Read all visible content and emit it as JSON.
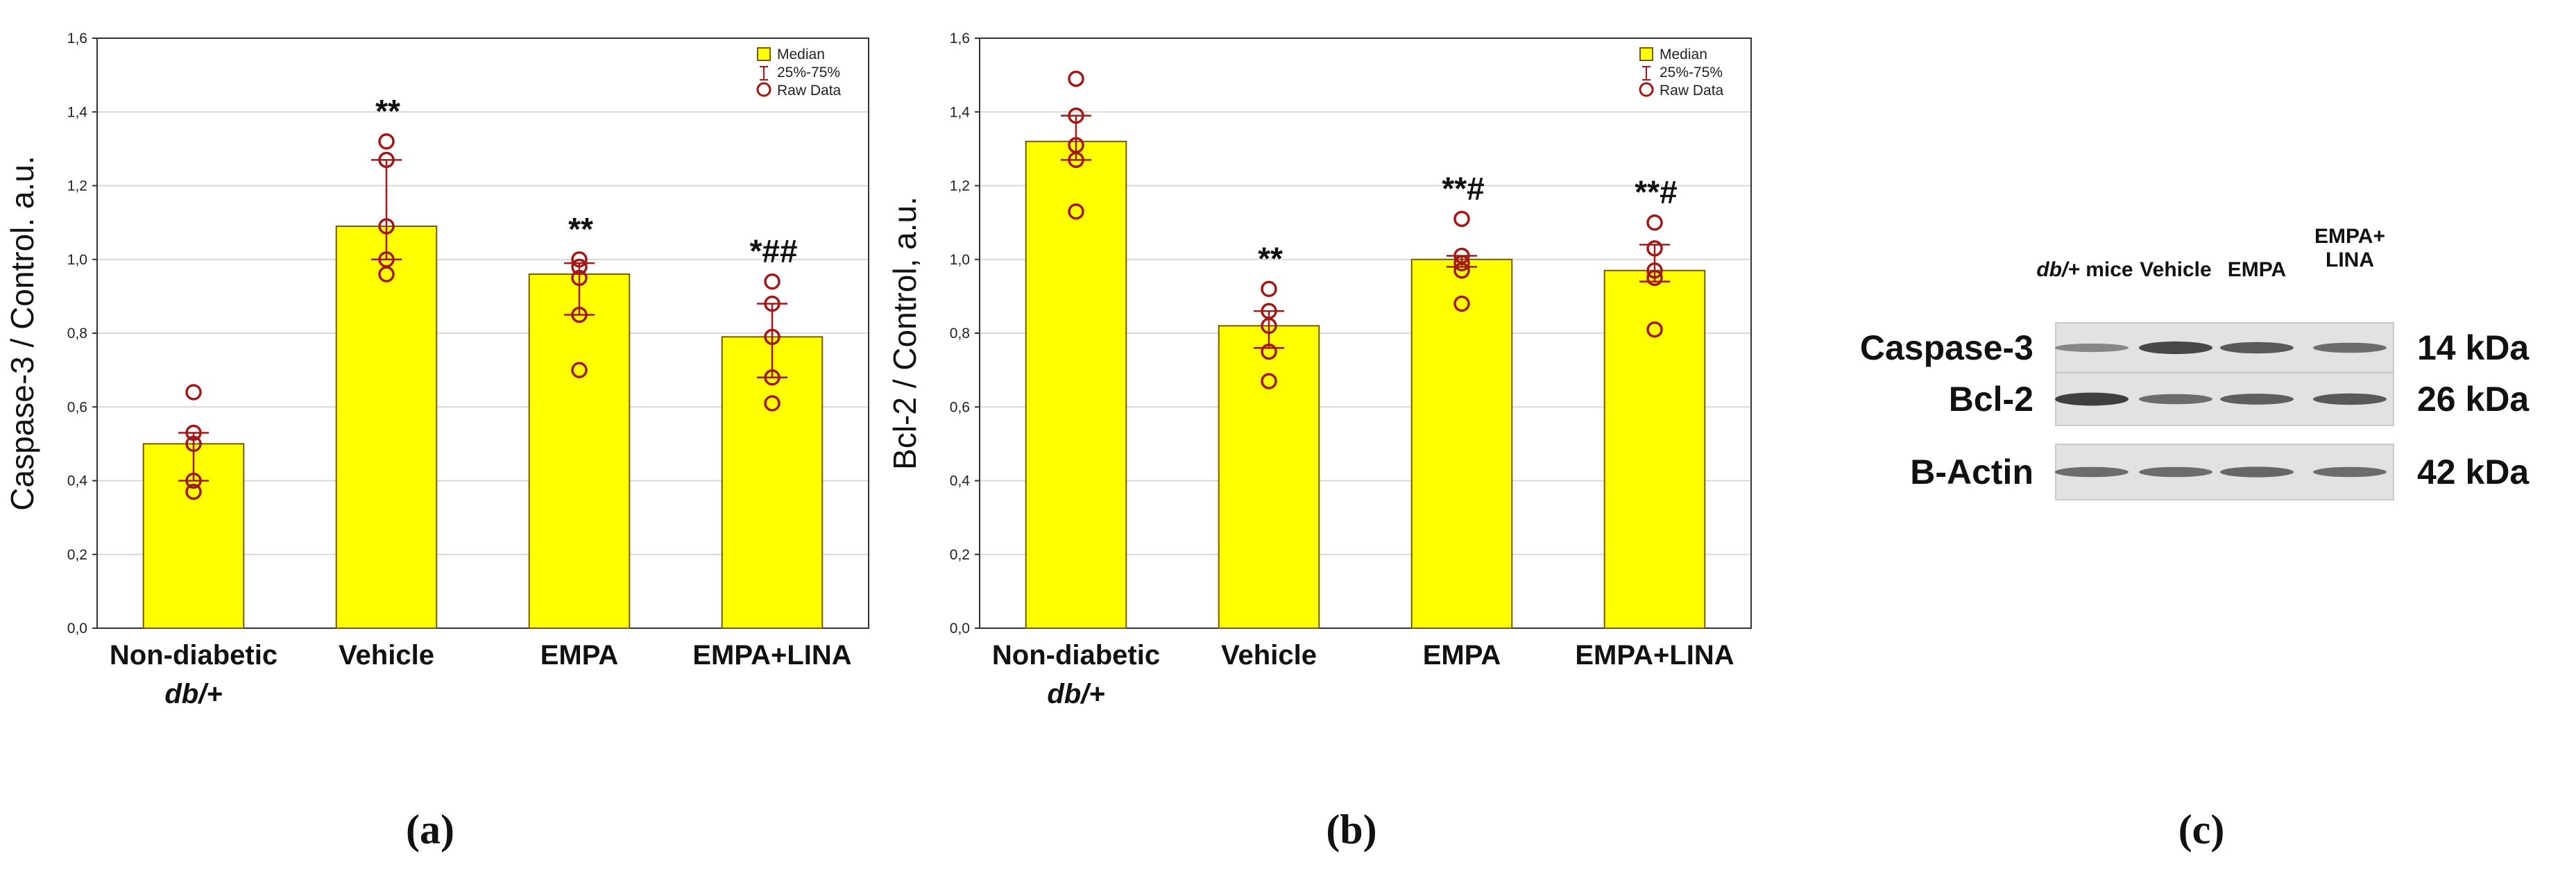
{
  "colors": {
    "bar_fill": "#ffff00",
    "bar_edge": "#7a5a00",
    "marker": "#a01818",
    "whisker": "#a01818",
    "grid": "#d9d9d9"
  },
  "chart_data": [
    {
      "type": "bar",
      "panel_label": "(a)",
      "ylabel": "Caspase-3 / Control. a.u.",
      "ylim": [
        0,
        1.6
      ],
      "yticks": [
        "0,0",
        "0,2",
        "0,4",
        "0,6",
        "0,8",
        "1,0",
        "1,2",
        "1,4",
        "1,6"
      ],
      "categories": [
        {
          "line1": "Non-diabetic",
          "line2": "db/+"
        },
        {
          "line1": "Vehicle",
          "line2": ""
        },
        {
          "line1": "EMPA",
          "line2": ""
        },
        {
          "line1": "EMPA+LINA",
          "line2": ""
        }
      ],
      "median": [
        0.5,
        1.09,
        0.96,
        0.79
      ],
      "q25": [
        0.4,
        1.0,
        0.85,
        0.68
      ],
      "q75": [
        0.53,
        1.27,
        0.99,
        0.88
      ],
      "raw": [
        [
          0.64,
          0.53,
          0.5,
          0.4,
          0.37
        ],
        [
          1.32,
          1.27,
          1.09,
          1.0,
          0.96
        ],
        [
          1.0,
          0.98,
          0.95,
          0.85,
          0.7
        ],
        [
          0.94,
          0.88,
          0.79,
          0.68,
          0.61
        ]
      ],
      "annotations": [
        "",
        "**",
        "**",
        "*##"
      ],
      "legend": {
        "median": "Median",
        "iqr": "25%-75%",
        "raw": "Raw Data"
      }
    },
    {
      "type": "bar",
      "panel_label": "(b)",
      "ylabel": "Bcl-2 / Control, a.u.",
      "ylim": [
        0,
        1.6
      ],
      "yticks": [
        "0,0",
        "0,2",
        "0,4",
        "0,6",
        "0,8",
        "1,0",
        "1,2",
        "1,4",
        "1,6"
      ],
      "categories": [
        {
          "line1": "Non-diabetic",
          "line2": "db/+"
        },
        {
          "line1": "Vehicle",
          "line2": ""
        },
        {
          "line1": "EMPA",
          "line2": ""
        },
        {
          "line1": "EMPA+LINA",
          "line2": ""
        }
      ],
      "median": [
        1.32,
        0.82,
        1.0,
        0.97
      ],
      "q25": [
        1.27,
        0.76,
        0.98,
        0.94
      ],
      "q75": [
        1.39,
        0.86,
        1.01,
        1.04
      ],
      "raw": [
        [
          1.49,
          1.39,
          1.31,
          1.27,
          1.13
        ],
        [
          0.92,
          0.86,
          0.82,
          0.75,
          0.67
        ],
        [
          1.11,
          1.01,
          0.99,
          0.97,
          0.88
        ],
        [
          1.1,
          1.03,
          0.97,
          0.95,
          0.81
        ]
      ],
      "annotations": [
        "",
        "**",
        "**#",
        "**#"
      ],
      "legend": {
        "median": "Median",
        "iqr": "25%-75%",
        "raw": "Raw Data"
      }
    }
  ],
  "western_blot": {
    "panel_label": "(c)",
    "lanes": [
      "db/+ mice",
      "Vehicle",
      "EMPA",
      "EMPA+ LINA"
    ],
    "bands": [
      {
        "protein": "Caspase-3",
        "size": "14 kDa",
        "intensity": [
          0.35,
          0.85,
          0.7,
          0.55
        ]
      },
      {
        "protein": "Bcl-2",
        "size": "26 kDa",
        "intensity": [
          0.9,
          0.55,
          0.65,
          0.7
        ]
      },
      {
        "protein": "B-Actin",
        "size": "42 kDa",
        "intensity": [
          0.55,
          0.55,
          0.6,
          0.55
        ]
      }
    ]
  }
}
